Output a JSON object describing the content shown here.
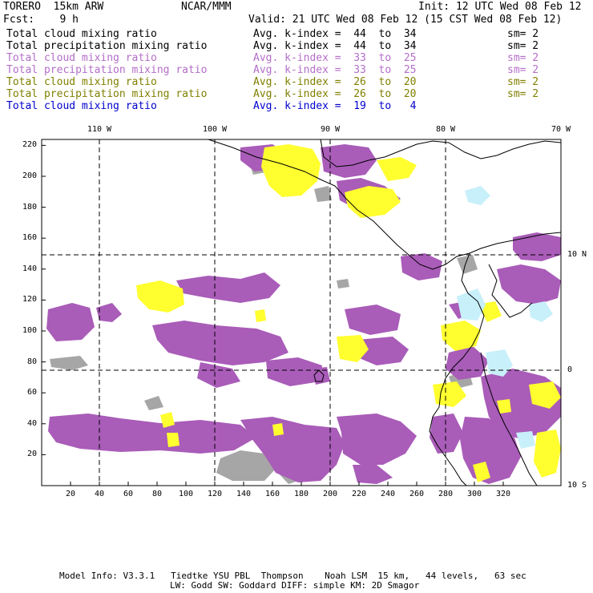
{
  "header": {
    "model": "TORERO  15km ARW",
    "org": "NCAR/MMM",
    "init": "Init: 12 UTC Wed 08 Feb 12",
    "fcst": "Fcst:    9 h",
    "valid": "Valid: 21 UTC Wed 08 Feb 12 (15 CST Wed 08 Feb 12)"
  },
  "legend": [
    {
      "name": "Total cloud mixing ratio",
      "kindex": "Avg. k-index =  44  to  34",
      "sm": "sm= 2",
      "color": "#000000"
    },
    {
      "name": "Total precipitation mixing ratio",
      "kindex": "Avg. k-index =  44  to  34",
      "sm": "sm= 2",
      "color": "#000000"
    },
    {
      "name": "Total cloud mixing ratio",
      "kindex": "Avg. k-index =  33  to  25",
      "sm": "sm= 2",
      "color": "#b46ec8"
    },
    {
      "name": "Total precipitation mixing ratio",
      "kindex": "Avg. k-index =  33  to  25",
      "sm": "sm= 2",
      "color": "#b46ec8"
    },
    {
      "name": "Total cloud mixing ratio",
      "kindex": "Avg. k-index =  26  to  20",
      "sm": "sm= 2",
      "color": "#808000"
    },
    {
      "name": "Total precipitation mixing ratio",
      "kindex": "Avg. k-index =  26  to  20",
      "sm": "sm= 2",
      "color": "#808000"
    },
    {
      "name": "Total cloud mixing ratio",
      "kindex": "Avg. k-index =  19  to   4",
      "sm": "",
      "color": "#0000cc"
    }
  ],
  "map": {
    "lon_labels": [
      "110 W",
      "100 W",
      "90 W",
      "80 W",
      "70 W"
    ],
    "lat_labels": [
      "10 N",
      "0",
      "10 S"
    ],
    "x_ticks": [
      "20",
      "40",
      "60",
      "80",
      "100",
      "120",
      "140",
      "160",
      "180",
      "200",
      "220",
      "240",
      "260",
      "280",
      "300",
      "320"
    ],
    "y_ticks": [
      "20",
      "40",
      "60",
      "80",
      "100",
      "120",
      "140",
      "160",
      "180",
      "200",
      "220"
    ],
    "colors": {
      "gray": "#a6a6a6",
      "purple": "#a95cb8",
      "yellow": "#ffff30",
      "lightblue": "#c8f0fa"
    }
  },
  "footer": {
    "line1": "Model Info: V3.3.1   Tiedtke YSU PBL  Thompson    Noah LSM  15 km,   44 levels,   63 sec",
    "line2": "LW: Godd SW: Goddard DIFF: simple KM: 2D Smagor"
  }
}
